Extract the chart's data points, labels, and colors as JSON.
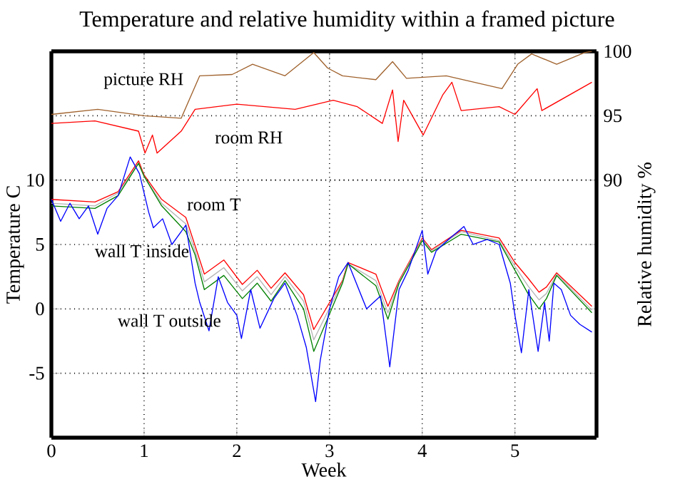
{
  "chart_data": {
    "type": "line",
    "title": "Temperature and relative humidity within a framed picture",
    "xlabel": "Week",
    "ylabel": "Temperature  C",
    "y2label": "Relative humidity %",
    "xlim": [
      0,
      5.88
    ],
    "xticks": [
      0,
      1,
      2,
      3,
      4,
      5
    ],
    "ylim": [
      -10,
      20
    ],
    "yticks": [
      -5,
      0,
      5,
      10
    ],
    "y2lim": [
      70,
      100
    ],
    "y2ticks": [
      90,
      95,
      100
    ],
    "grid": true,
    "series": [
      {
        "name": "picture RH",
        "color": "#a0622d",
        "axis": "y2",
        "x": [
          0,
          0.5,
          1.0,
          1.4,
          1.6,
          1.95,
          2.17,
          2.52,
          2.83,
          2.98,
          3.14,
          3.5,
          3.68,
          3.83,
          4.26,
          4.86,
          5.03,
          5.18,
          5.45,
          5.75,
          5.83
        ],
        "values": [
          95.1,
          95.5,
          95.0,
          94.8,
          98.1,
          98.2,
          99.0,
          98.1,
          99.9,
          98.7,
          98.1,
          97.8,
          99.2,
          97.9,
          98.1,
          97.1,
          99.0,
          99.8,
          99.0,
          99.9,
          100
        ]
      },
      {
        "name": "room RH",
        "color": "#ff0000",
        "axis": "y2",
        "x": [
          0,
          0.47,
          0.94,
          1.01,
          1.09,
          1.14,
          1.4,
          1.55,
          2.0,
          2.63,
          3.04,
          3.3,
          3.57,
          3.68,
          3.74,
          3.8,
          4.01,
          4.22,
          4.32,
          4.42,
          4.83,
          5.0,
          5.24,
          5.29,
          5.83
        ],
        "values": [
          94.4,
          94.6,
          93.8,
          92.1,
          93.5,
          92.1,
          93.8,
          95.5,
          95.9,
          95.5,
          96.2,
          95.7,
          94.4,
          97.0,
          93.0,
          96.2,
          93.5,
          96.6,
          97.6,
          95.4,
          95.7,
          95.1,
          97.1,
          95.4,
          97.6
        ]
      },
      {
        "name": "room T",
        "color": "#ff0000",
        "x": [
          0,
          0.47,
          0.72,
          0.94,
          1.0,
          1.19,
          1.45,
          1.55,
          1.65,
          1.86,
          2.06,
          2.22,
          2.37,
          2.52,
          2.72,
          2.83,
          3.14,
          3.2,
          3.5,
          3.63,
          3.75,
          4.0,
          4.1,
          4.42,
          4.83,
          5.0,
          5.14,
          5.26,
          5.34,
          5.45,
          5.83
        ],
        "values": [
          8.5,
          8.3,
          9.1,
          11.5,
          10.4,
          8.5,
          7.1,
          4.9,
          2.7,
          3.8,
          1.9,
          3.0,
          1.6,
          2.8,
          1.1,
          -1.6,
          2.2,
          3.6,
          2.7,
          0.2,
          2.2,
          5.5,
          4.6,
          6.1,
          5.5,
          3.6,
          2.4,
          1.3,
          1.7,
          2.8,
          0.2
        ]
      },
      {
        "color": "#b4b4b4",
        "x": [
          0,
          0.47,
          0.72,
          0.94,
          1.0,
          1.19,
          1.45,
          1.55,
          1.65,
          1.86,
          2.06,
          2.22,
          2.37,
          2.52,
          2.72,
          2.83,
          3.14,
          3.2,
          3.5,
          3.63,
          3.75,
          4.0,
          4.1,
          4.42,
          4.83,
          5.0,
          5.14,
          5.26,
          5.34,
          5.45,
          5.83
        ],
        "values": [
          8.2,
          8.0,
          9.0,
          11.3,
          10.3,
          8.2,
          6.6,
          4.5,
          2.1,
          3.2,
          1.4,
          2.5,
          1.1,
          2.5,
          0.6,
          -2.4,
          2.1,
          3.5,
          2.2,
          -0.3,
          2.1,
          5.4,
          4.5,
          6.0,
          5.3,
          3.3,
          1.8,
          0.7,
          1.2,
          2.7,
          -0.1
        ]
      },
      {
        "name": "wall T inside",
        "color": "#008000",
        "x": [
          0,
          0.47,
          0.72,
          0.94,
          1.0,
          1.19,
          1.45,
          1.55,
          1.65,
          1.86,
          2.06,
          2.22,
          2.37,
          2.52,
          2.72,
          2.83,
          3.14,
          3.2,
          3.5,
          3.63,
          3.75,
          4.0,
          4.1,
          4.42,
          4.83,
          5.0,
          5.14,
          5.26,
          5.34,
          5.45,
          5.83
        ],
        "values": [
          8.0,
          7.8,
          8.8,
          11.3,
          10.3,
          8.0,
          6.0,
          4.2,
          1.5,
          2.6,
          0.8,
          2.0,
          0.6,
          2.2,
          0.0,
          -3.3,
          2.0,
          3.5,
          1.8,
          -0.8,
          2.0,
          5.3,
          4.4,
          5.8,
          5.2,
          3.0,
          1.2,
          0.0,
          0.8,
          2.6,
          -0.3
        ]
      },
      {
        "name": "wall T outside",
        "color": "#0000ff",
        "x": [
          0,
          0.1,
          0.2,
          0.3,
          0.4,
          0.5,
          0.6,
          0.72,
          0.85,
          0.95,
          1.05,
          1.1,
          1.2,
          1.3,
          1.45,
          1.55,
          1.6,
          1.7,
          1.8,
          1.9,
          2.0,
          2.05,
          2.15,
          2.25,
          2.4,
          2.52,
          2.65,
          2.75,
          2.85,
          2.9,
          3.0,
          3.1,
          3.2,
          3.4,
          3.55,
          3.65,
          3.75,
          3.85,
          4.0,
          4.06,
          4.15,
          4.3,
          4.45,
          4.55,
          4.7,
          4.83,
          4.95,
          5.0,
          5.07,
          5.15,
          5.25,
          5.32,
          5.37,
          5.42,
          5.5,
          5.6,
          5.7,
          5.83
        ],
        "values": [
          8.5,
          6.8,
          8.2,
          7.0,
          8.0,
          5.8,
          7.8,
          8.8,
          11.8,
          10.5,
          7.5,
          6.3,
          7.0,
          5.0,
          6.5,
          2.0,
          0.5,
          -1.7,
          2.5,
          0.5,
          -0.5,
          -2.3,
          1.5,
          -1.5,
          0.8,
          2.0,
          -0.5,
          -3.0,
          -7.2,
          -4.0,
          0.0,
          2.5,
          3.6,
          0.0,
          1.0,
          -4.5,
          1.5,
          3.0,
          6.1,
          2.7,
          4.5,
          5.5,
          6.4,
          5.0,
          5.4,
          5.0,
          2.0,
          -0.5,
          -3.4,
          1.5,
          -3.3,
          0.5,
          -2.5,
          2.0,
          1.5,
          -0.5,
          -1.2,
          -1.8
        ]
      }
    ]
  }
}
